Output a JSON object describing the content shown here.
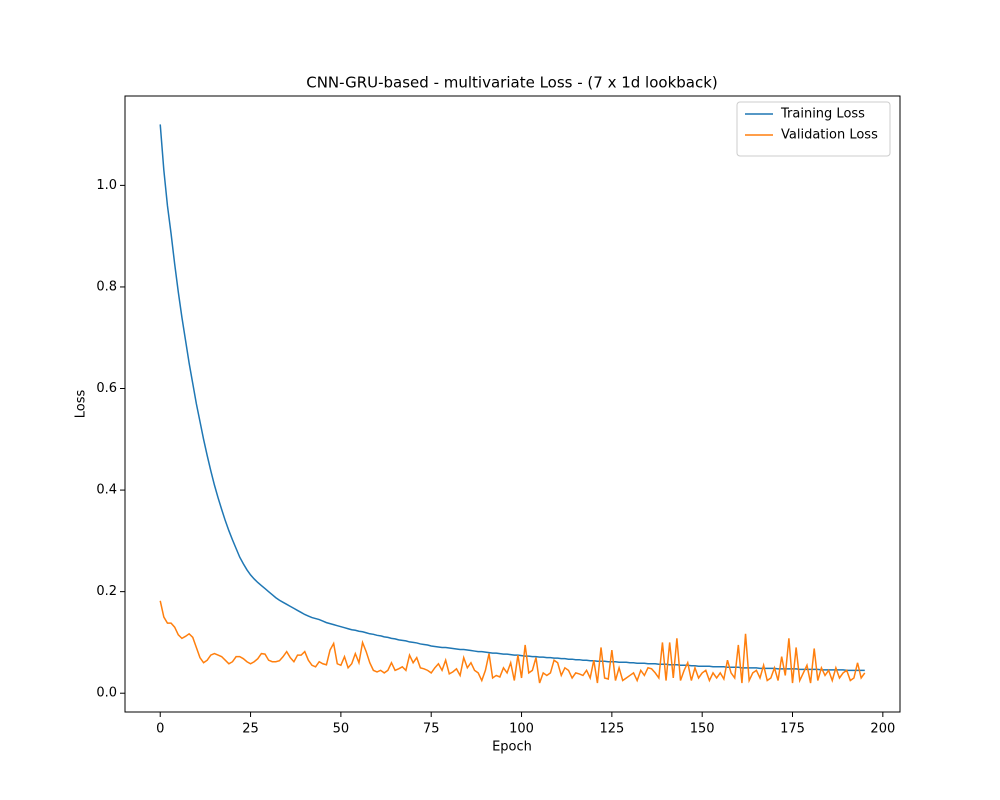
{
  "chart_data": {
    "type": "line",
    "title": "CNN-GRU-based - multivariate Loss - (7 x 1d lookback)",
    "xlabel": "Epoch",
    "ylabel": "Loss",
    "xlim": [
      -9.75,
      204.75
    ],
    "ylim": [
      -0.037,
      1.176
    ],
    "xticks": [
      0,
      25,
      50,
      75,
      100,
      125,
      150,
      175,
      200
    ],
    "yticks": [
      {
        "value": 0,
        "label": "0.0"
      },
      0.2,
      0.4,
      0.6,
      0.8,
      {
        "value": 1,
        "label": "1.0"
      }
    ],
    "grid": false,
    "legend": "upper right",
    "x": [
      0,
      1,
      2,
      3,
      4,
      5,
      6,
      7,
      8,
      9,
      10,
      11,
      12,
      13,
      14,
      15,
      16,
      17,
      18,
      19,
      20,
      21,
      22,
      23,
      24,
      25,
      26,
      27,
      28,
      29,
      30,
      31,
      32,
      33,
      34,
      35,
      36,
      37,
      38,
      39,
      40,
      41,
      42,
      43,
      44,
      45,
      46,
      47,
      48,
      49,
      50,
      51,
      52,
      53,
      54,
      55,
      56,
      57,
      58,
      59,
      60,
      61,
      62,
      63,
      64,
      65,
      66,
      67,
      68,
      69,
      70,
      71,
      72,
      73,
      74,
      75,
      76,
      77,
      78,
      79,
      80,
      81,
      82,
      83,
      84,
      85,
      86,
      87,
      88,
      89,
      90,
      91,
      92,
      93,
      94,
      95,
      96,
      97,
      98,
      99,
      100,
      101,
      102,
      103,
      104,
      105,
      106,
      107,
      108,
      109,
      110,
      111,
      112,
      113,
      114,
      115,
      116,
      117,
      118,
      119,
      120,
      121,
      122,
      123,
      124,
      125,
      126,
      127,
      128,
      129,
      130,
      131,
      132,
      133,
      134,
      135,
      136,
      137,
      138,
      139,
      140,
      141,
      142,
      143,
      144,
      145,
      146,
      147,
      148,
      149,
      150,
      151,
      152,
      153,
      154,
      155,
      156,
      157,
      158,
      159,
      160,
      161,
      162,
      163,
      164,
      165,
      166,
      167,
      168,
      169,
      170,
      171,
      172,
      173,
      174,
      175,
      176,
      177,
      178,
      179,
      180,
      181,
      182,
      183,
      184,
      185,
      186,
      187,
      188,
      189,
      190,
      191,
      192,
      193,
      194,
      195
    ],
    "series": [
      {
        "name": "Training Loss",
        "color": "#1f77b4",
        "values": [
          1.12,
          1.03,
          0.96,
          0.905,
          0.845,
          0.79,
          0.74,
          0.695,
          0.65,
          0.61,
          0.57,
          0.535,
          0.5,
          0.468,
          0.438,
          0.41,
          0.385,
          0.362,
          0.34,
          0.32,
          0.302,
          0.285,
          0.268,
          0.255,
          0.243,
          0.233,
          0.225,
          0.218,
          0.212,
          0.206,
          0.2,
          0.194,
          0.188,
          0.183,
          0.179,
          0.175,
          0.171,
          0.167,
          0.163,
          0.159,
          0.155,
          0.152,
          0.149,
          0.147,
          0.145,
          0.142,
          0.139,
          0.137,
          0.135,
          0.133,
          0.131,
          0.129,
          0.127,
          0.125,
          0.124,
          0.122,
          0.121,
          0.119,
          0.117,
          0.116,
          0.114,
          0.113,
          0.111,
          0.11,
          0.108,
          0.107,
          0.105,
          0.104,
          0.103,
          0.101,
          0.1,
          0.099,
          0.097,
          0.096,
          0.095,
          0.093,
          0.092,
          0.091,
          0.09,
          0.09,
          0.089,
          0.088,
          0.087,
          0.086,
          0.086,
          0.085,
          0.084,
          0.083,
          0.082,
          0.082,
          0.081,
          0.08,
          0.079,
          0.079,
          0.078,
          0.077,
          0.077,
          0.076,
          0.075,
          0.075,
          0.074,
          0.073,
          0.073,
          0.072,
          0.072,
          0.071,
          0.071,
          0.07,
          0.07,
          0.069,
          0.069,
          0.068,
          0.068,
          0.067,
          0.067,
          0.066,
          0.066,
          0.065,
          0.065,
          0.064,
          0.064,
          0.063,
          0.063,
          0.063,
          0.062,
          0.062,
          0.062,
          0.061,
          0.061,
          0.061,
          0.06,
          0.06,
          0.059,
          0.059,
          0.059,
          0.058,
          0.058,
          0.058,
          0.057,
          0.057,
          0.057,
          0.056,
          0.056,
          0.056,
          0.055,
          0.055,
          0.055,
          0.054,
          0.054,
          0.053,
          0.053,
          0.053,
          0.053,
          0.052,
          0.052,
          0.052,
          0.052,
          0.051,
          0.051,
          0.051,
          0.051,
          0.05,
          0.05,
          0.05,
          0.05,
          0.05,
          0.049,
          0.049,
          0.049,
          0.049,
          0.049,
          0.048,
          0.048,
          0.048,
          0.048,
          0.048,
          0.048,
          0.047,
          0.047,
          0.047,
          0.047,
          0.047,
          0.047,
          0.046,
          0.046,
          0.046,
          0.046,
          0.046,
          0.046,
          0.046,
          0.045,
          0.045,
          0.045,
          0.045,
          0.045,
          0.045
        ]
      },
      {
        "name": "Validation Loss",
        "color": "#ff7f0e",
        "values": [
          0.182,
          0.15,
          0.138,
          0.138,
          0.13,
          0.115,
          0.108,
          0.112,
          0.117,
          0.11,
          0.09,
          0.07,
          0.06,
          0.065,
          0.075,
          0.078,
          0.075,
          0.072,
          0.065,
          0.058,
          0.062,
          0.072,
          0.072,
          0.068,
          0.062,
          0.058,
          0.062,
          0.068,
          0.078,
          0.077,
          0.065,
          0.062,
          0.062,
          0.064,
          0.072,
          0.082,
          0.07,
          0.062,
          0.075,
          0.075,
          0.082,
          0.065,
          0.055,
          0.052,
          0.062,
          0.058,
          0.056,
          0.085,
          0.098,
          0.058,
          0.055,
          0.072,
          0.05,
          0.058,
          0.078,
          0.06,
          0.1,
          0.082,
          0.06,
          0.045,
          0.042,
          0.045,
          0.04,
          0.045,
          0.06,
          0.045,
          0.048,
          0.052,
          0.045,
          0.075,
          0.06,
          0.07,
          0.05,
          0.048,
          0.045,
          0.04,
          0.05,
          0.058,
          0.045,
          0.065,
          0.038,
          0.042,
          0.048,
          0.035,
          0.07,
          0.05,
          0.06,
          0.045,
          0.04,
          0.025,
          0.045,
          0.078,
          0.03,
          0.035,
          0.032,
          0.05,
          0.04,
          0.06,
          0.025,
          0.075,
          0.03,
          0.095,
          0.04,
          0.045,
          0.07,
          0.02,
          0.04,
          0.035,
          0.04,
          0.065,
          0.06,
          0.035,
          0.05,
          0.045,
          0.03,
          0.04,
          0.038,
          0.035,
          0.045,
          0.03,
          0.065,
          0.02,
          0.09,
          0.03,
          0.028,
          0.085,
          0.025,
          0.05,
          0.025,
          0.03,
          0.035,
          0.04,
          0.025,
          0.045,
          0.035,
          0.05,
          0.048,
          0.04,
          0.03,
          0.1,
          0.025,
          0.1,
          0.03,
          0.108,
          0.025,
          0.045,
          0.06,
          0.025,
          0.05,
          0.03,
          0.04,
          0.045,
          0.025,
          0.04,
          0.03,
          0.04,
          0.028,
          0.065,
          0.04,
          0.03,
          0.095,
          0.02,
          0.117,
          0.025,
          0.04,
          0.045,
          0.03,
          0.055,
          0.025,
          0.03,
          0.05,
          0.025,
          0.072,
          0.035,
          0.108,
          0.02,
          0.09,
          0.025,
          0.04,
          0.055,
          0.02,
          0.088,
          0.025,
          0.05,
          0.035,
          0.045,
          0.025,
          0.05,
          0.03,
          0.04,
          0.045,
          0.025,
          0.03,
          0.06,
          0.03,
          0.04
        ]
      }
    ]
  }
}
